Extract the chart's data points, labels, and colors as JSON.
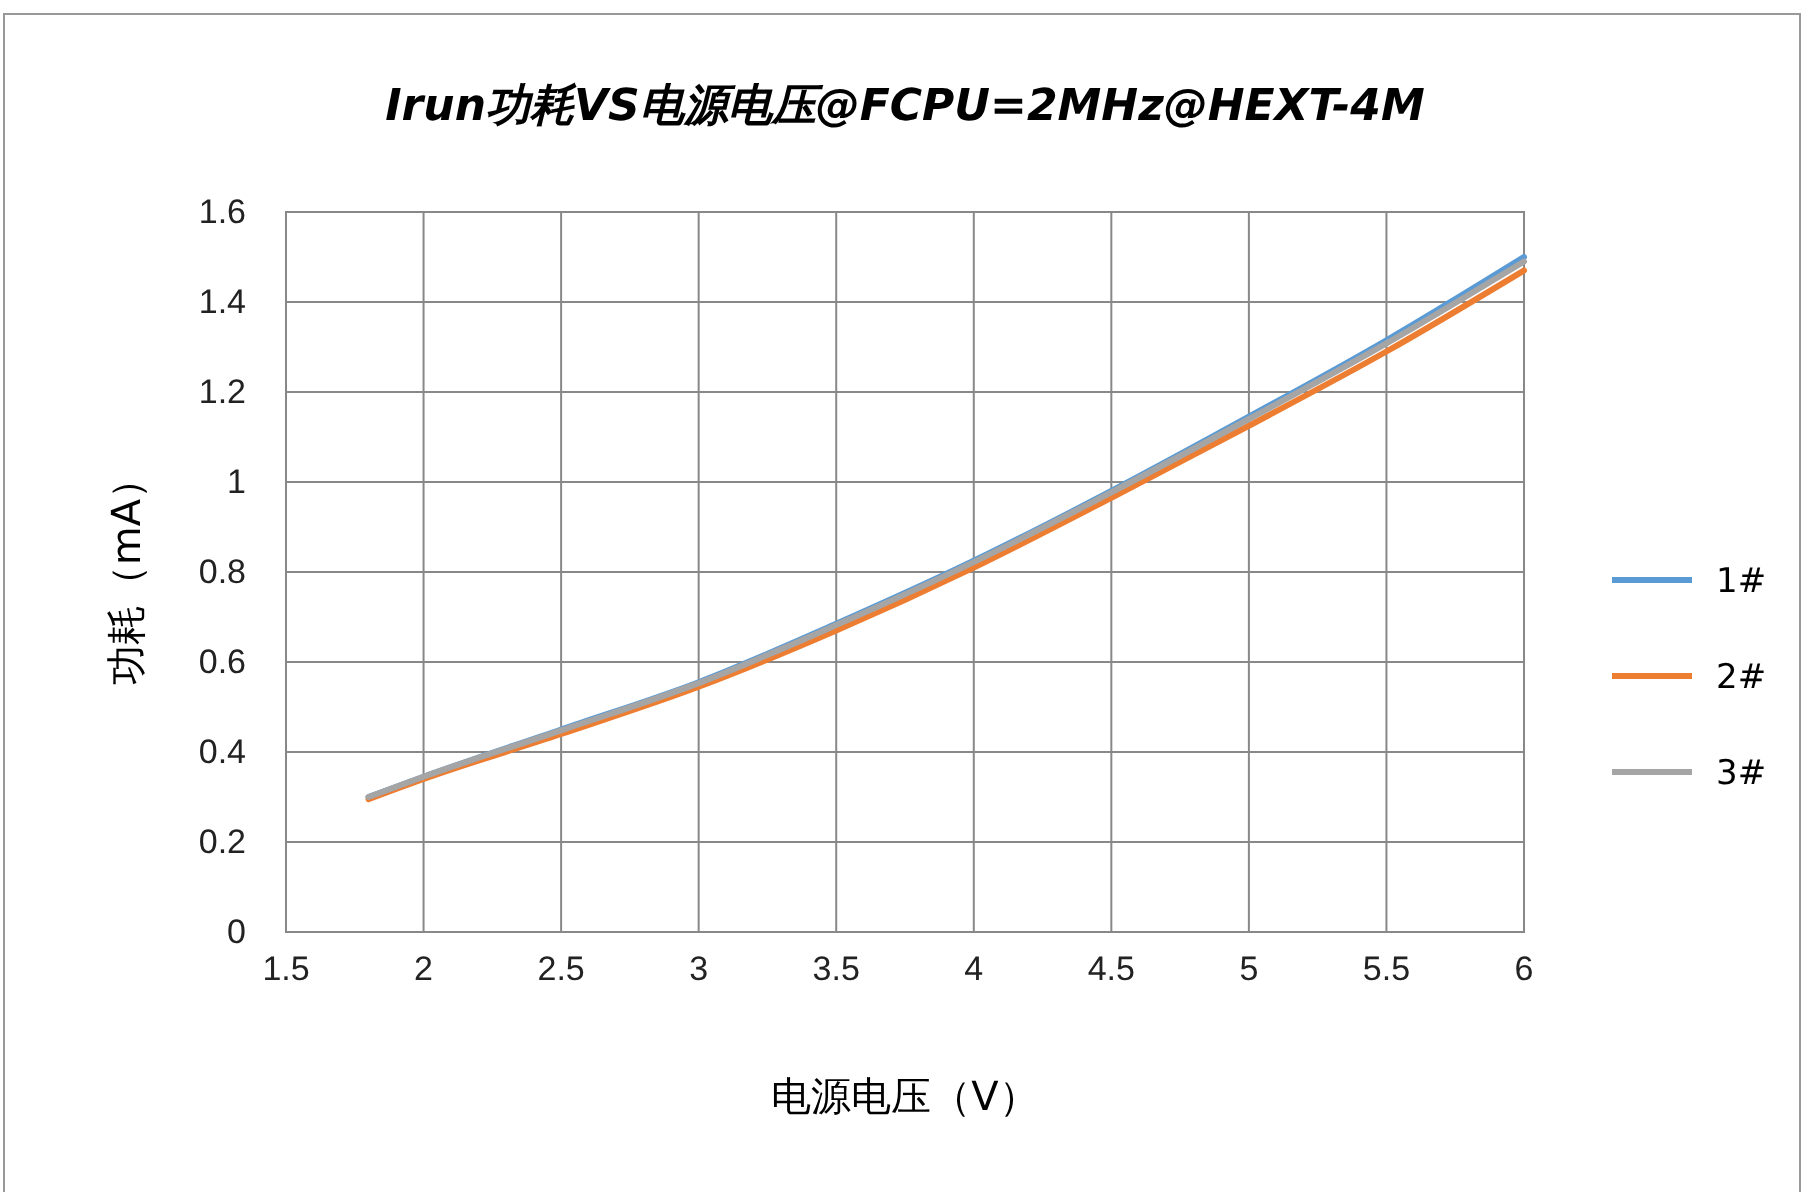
{
  "chart_data": {
    "type": "line",
    "title": "Irun功耗VS电源电压@FCPU=2MHz@HEXT-4M",
    "xlabel": "电源电压（V）",
    "ylabel": "功耗（mA）",
    "x": [
      1.8,
      2,
      2.5,
      3,
      3.5,
      4,
      4.5,
      5,
      5.5,
      6
    ],
    "series": [
      {
        "name": "1#",
        "color": "#5b9bd5",
        "values": [
          0.3,
          0.345,
          0.45,
          0.555,
          0.685,
          0.825,
          0.98,
          1.145,
          1.315,
          1.5
        ]
      },
      {
        "name": "2#",
        "color": "#ed7d31",
        "values": [
          0.295,
          0.34,
          0.44,
          0.545,
          0.67,
          0.81,
          0.965,
          1.125,
          1.29,
          1.47
        ]
      },
      {
        "name": "3#",
        "color": "#a5a5a5",
        "values": [
          0.3,
          0.345,
          0.448,
          0.553,
          0.682,
          0.822,
          0.977,
          1.14,
          1.308,
          1.49
        ]
      }
    ],
    "xlim": [
      1.5,
      6
    ],
    "xticks": [
      1.5,
      2,
      2.5,
      3,
      3.5,
      4,
      4.5,
      5,
      5.5,
      6
    ],
    "ylim": [
      0,
      1.6
    ],
    "yticks": [
      0,
      0.2,
      0.4,
      0.6,
      0.8,
      1,
      1.2,
      1.4,
      1.6
    ],
    "grid": true,
    "legend": "right",
    "marker": "none",
    "line_style": "solid"
  }
}
